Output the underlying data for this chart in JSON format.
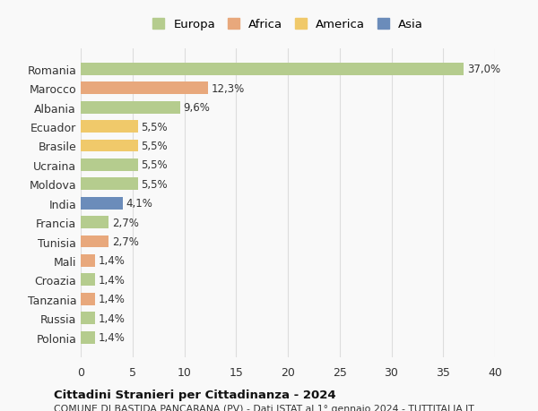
{
  "countries": [
    "Romania",
    "Marocco",
    "Albania",
    "Ecuador",
    "Brasile",
    "Ucraina",
    "Moldova",
    "India",
    "Francia",
    "Tunisia",
    "Mali",
    "Croazia",
    "Tanzania",
    "Russia",
    "Polonia"
  ],
  "values": [
    37.0,
    12.3,
    9.6,
    5.5,
    5.5,
    5.5,
    5.5,
    4.1,
    2.7,
    2.7,
    1.4,
    1.4,
    1.4,
    1.4,
    1.4
  ],
  "labels": [
    "37,0%",
    "12,3%",
    "9,6%",
    "5,5%",
    "5,5%",
    "5,5%",
    "5,5%",
    "4,1%",
    "2,7%",
    "2,7%",
    "1,4%",
    "1,4%",
    "1,4%",
    "1,4%",
    "1,4%"
  ],
  "colors": [
    "#b5cc8e",
    "#e8a87c",
    "#b5cc8e",
    "#f0c96a",
    "#f0c96a",
    "#b5cc8e",
    "#b5cc8e",
    "#6b8cba",
    "#b5cc8e",
    "#e8a87c",
    "#e8a87c",
    "#b5cc8e",
    "#e8a87c",
    "#b5cc8e",
    "#b5cc8e"
  ],
  "legend_labels": [
    "Europa",
    "Africa",
    "America",
    "Asia"
  ],
  "legend_colors": [
    "#b5cc8e",
    "#e8a87c",
    "#f0c96a",
    "#6b8cba"
  ],
  "xlim": [
    0,
    40
  ],
  "xticks": [
    0,
    5,
    10,
    15,
    20,
    25,
    30,
    35,
    40
  ],
  "title": "Cittadini Stranieri per Cittadinanza - 2024",
  "subtitle": "COMUNE DI BASTIDA PANCARANA (PV) - Dati ISTAT al 1° gennaio 2024 - TUTTITALIA.IT",
  "bg_color": "#f9f9f9",
  "grid_color": "#dddddd"
}
